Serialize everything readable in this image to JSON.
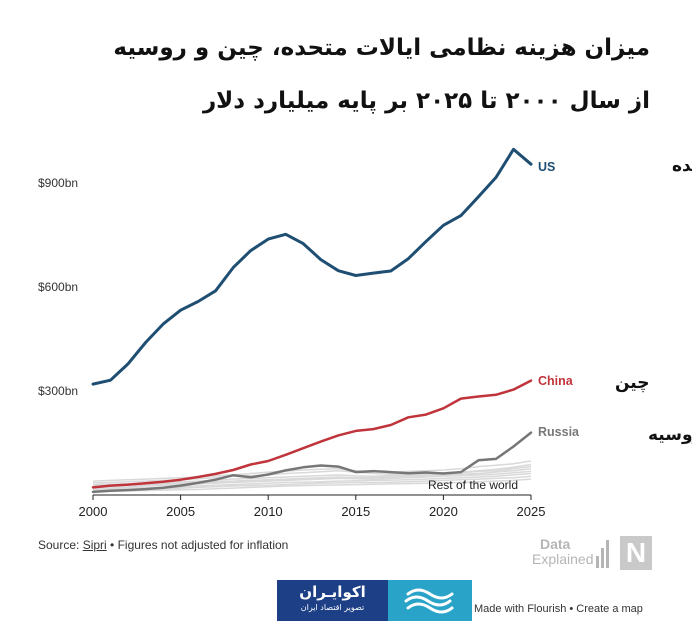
{
  "title_line1": "میزان هزینه نظامی ایالات متحده، چین و روسیه",
  "title_line2": "از سال ۲۰۰۰ تا ۲۰۲۵ بر پایه میلیارد دلار",
  "source_prefix": "Source: ",
  "source_link": "Sipri",
  "source_note": " • Figures not adjusted for inflation",
  "data_explained_logo": {
    "word1": "Data",
    "word2": "Explained",
    "letter": "N"
  },
  "ekovairan_logo": {
    "name": "اکوایـران",
    "tagline": "تصویر اقتصاد ایران"
  },
  "flourish_credit": "Made with Flourish • Create a map",
  "colors": {
    "us": "#1f4e73",
    "china": "#c0343b",
    "russia": "#777777",
    "rest": "#d9d9d9",
    "axis": "#222222"
  },
  "chart_data": {
    "type": "line",
    "x_ticks": [
      2000,
      2005,
      2010,
      2015,
      2020,
      2025
    ],
    "y_ticks": [
      {
        "value": 300,
        "label": "$300bn"
      },
      {
        "value": 600,
        "label": "$600bn"
      },
      {
        "value": 900,
        "label": "$900bn"
      }
    ],
    "xlim": [
      2000,
      2025
    ],
    "ylim": [
      0,
      1050
    ],
    "grid": false,
    "x": [
      2000,
      2001,
      2002,
      2003,
      2004,
      2005,
      2006,
      2007,
      2008,
      2009,
      2010,
      2011,
      2012,
      2013,
      2014,
      2015,
      2016,
      2017,
      2018,
      2019,
      2020,
      2021,
      2022,
      2023,
      2024,
      2025
    ],
    "series": [
      {
        "name": "US",
        "name_fa": "ایالات متحده",
        "color": "#1f4e73",
        "width": 3,
        "values": [
          320,
          331,
          378,
          440,
          493,
          533,
          558,
          589,
          656,
          705,
          738,
          752,
          725,
          679,
          647,
          633,
          640,
          646,
          682,
          731,
          778,
          806,
          860,
          916,
          997,
          954
        ]
      },
      {
        "name": "China",
        "name_fa": "چین",
        "color": "#c0343b",
        "width": 2.5,
        "values": [
          22,
          27,
          30,
          34,
          38,
          44,
          52,
          61,
          72,
          88,
          98,
          116,
          135,
          154,
          172,
          185,
          190,
          202,
          224,
          232,
          250,
          278,
          284,
          289,
          304,
          330
        ]
      },
      {
        "name": "Russia",
        "name_fa": "روسیه",
        "color": "#777777",
        "width": 2.5,
        "values": [
          9,
          12,
          14,
          17,
          21,
          27,
          35,
          44,
          57,
          51,
          59,
          71,
          80,
          85,
          82,
          66,
          69,
          66,
          63,
          65,
          62,
          66,
          100,
          104,
          140,
          180
        ]
      }
    ],
    "rest_of_world": {
      "label": "Rest of the world",
      "color": "#d9d9d9",
      "series": [
        [
          40,
          42,
          44,
          46,
          48,
          50,
          52,
          55,
          58,
          62,
          66,
          69,
          72,
          74,
          76,
          70,
          68,
          66,
          68,
          70,
          72,
          76,
          82,
          86,
          90,
          98
        ],
        [
          35,
          36,
          38,
          40,
          42,
          44,
          47,
          50,
          54,
          56,
          58,
          62,
          64,
          67,
          70,
          66,
          62,
          60,
          60,
          62,
          64,
          66,
          70,
          74,
          80,
          88
        ],
        [
          30,
          31,
          32,
          34,
          36,
          38,
          40,
          43,
          46,
          48,
          50,
          52,
          54,
          56,
          58,
          55,
          54,
          56,
          58,
          60,
          62,
          64,
          68,
          70,
          76,
          82
        ],
        [
          26,
          27,
          28,
          30,
          32,
          34,
          36,
          38,
          40,
          42,
          44,
          46,
          48,
          50,
          52,
          50,
          50,
          52,
          54,
          56,
          58,
          60,
          62,
          66,
          70,
          76
        ],
        [
          22,
          23,
          24,
          26,
          28,
          30,
          32,
          34,
          36,
          38,
          40,
          42,
          44,
          46,
          48,
          47,
          46,
          48,
          50,
          52,
          54,
          56,
          58,
          60,
          64,
          68
        ],
        [
          18,
          19,
          20,
          21,
          22,
          24,
          26,
          28,
          30,
          32,
          34,
          36,
          37,
          38,
          40,
          41,
          42,
          43,
          44,
          46,
          48,
          50,
          52,
          54,
          58,
          62
        ],
        [
          14,
          15,
          16,
          17,
          18,
          20,
          22,
          24,
          26,
          27,
          28,
          30,
          32,
          34,
          35,
          36,
          36,
          37,
          38,
          40,
          42,
          44,
          46,
          48,
          50,
          54
        ],
        [
          10,
          11,
          12,
          13,
          14,
          15,
          16,
          18,
          20,
          22,
          24,
          26,
          27,
          28,
          29,
          30,
          31,
          32,
          33,
          34,
          35,
          36,
          38,
          40,
          42,
          46
        ]
      ]
    }
  }
}
